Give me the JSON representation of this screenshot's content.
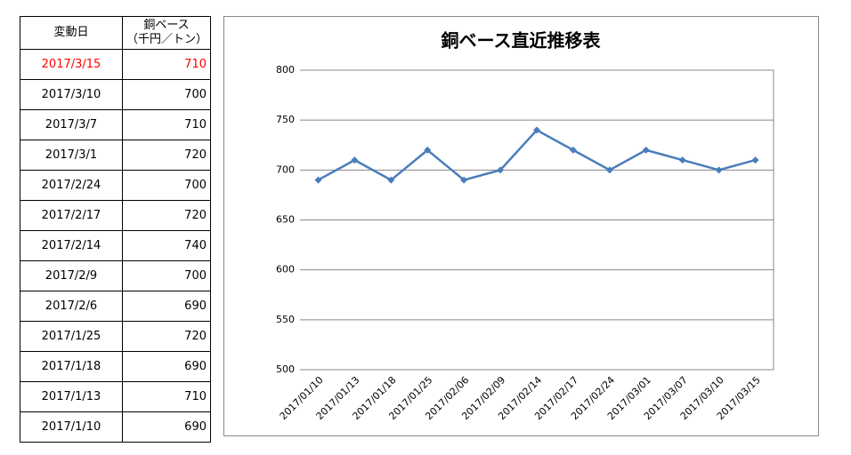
{
  "table": {
    "header": {
      "date": "変動日",
      "price": "銅ベース",
      "price_unit": "（千円／トン）"
    },
    "rows": [
      [
        "2017/3/15",
        "710"
      ],
      [
        "2017/3/10",
        "700"
      ],
      [
        "2017/3/7",
        "710"
      ],
      [
        "2017/3/1",
        "720"
      ],
      [
        "2017/2/24",
        "700"
      ],
      [
        "2017/2/17",
        "720"
      ],
      [
        "2017/2/14",
        "740"
      ],
      [
        "2017/2/9",
        "700"
      ],
      [
        "2017/2/6",
        "690"
      ],
      [
        "2017/1/25",
        "720"
      ],
      [
        "2017/1/18",
        "690"
      ],
      [
        "2017/1/13",
        "710"
      ],
      [
        "2017/1/10",
        "690"
      ]
    ]
  },
  "chart_data": {
    "type": "line",
    "title": "銅ベース直近推移表",
    "categories": [
      "2017/01/10",
      "2017/01/13",
      "2017/01/18",
      "2017/01/25",
      "2017/02/06",
      "2017/02/09",
      "2017/02/14",
      "2017/02/17",
      "2017/02/24",
      "2017/03/01",
      "2017/03/07",
      "2017/03/10",
      "2017/03/15"
    ],
    "values": [
      690,
      710,
      690,
      720,
      690,
      700,
      740,
      720,
      700,
      720,
      710,
      700,
      710
    ],
    "color": "#4a7ebb",
    "ylim": [
      500,
      800
    ],
    "yticks": [
      500,
      550,
      600,
      650,
      700,
      750,
      800
    ],
    "grid": true
  }
}
